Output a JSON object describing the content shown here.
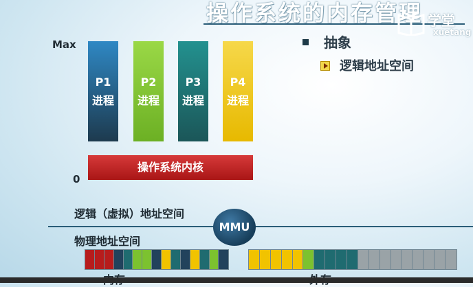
{
  "header": {
    "title": "操作系统的内存管理"
  },
  "logo": {
    "name_zh": "学堂",
    "name_en": "xuetang"
  },
  "bullets": {
    "level1": "抽象",
    "level2": "逻辑地址空间"
  },
  "axis": {
    "max": "Max",
    "zero": "0"
  },
  "processes": [
    {
      "name": "P1",
      "label": "进程",
      "color": "#22425c"
    },
    {
      "name": "P2",
      "label": "进程",
      "color": "#7cc22f"
    },
    {
      "name": "P3",
      "label": "进程",
      "color": "#1f6b70"
    },
    {
      "name": "P4",
      "label": "进程",
      "color": "#f1c300"
    }
  ],
  "kernel": {
    "label": "操作系统内核"
  },
  "address": {
    "logical": "逻辑（虚拟）地址空间",
    "physical": "物理地址空间",
    "mmu": "MMU"
  },
  "memory": {
    "label": "内存",
    "colors": [
      "#b71c1c",
      "#b71c1c",
      "#b71c1c",
      "#22425c",
      "#1f6b70",
      "#7cc22f",
      "#7cc22f",
      "#22425c",
      "#f1c300",
      "#1f6b70",
      "#22425c",
      "#f1c300",
      "#1f6b70",
      "#7cc22f",
      "#22425c"
    ]
  },
  "external": {
    "label": "外存",
    "colors": [
      "#f1c300",
      "#f1c300",
      "#f1c300",
      "#f1c300",
      "#f1c300",
      "#7cc22f",
      "#1f6b70",
      "#1f6b70",
      "#1f6b70",
      "#1f6b70",
      "#9aa3a7",
      "#9aa3a7",
      "#9aa3a7",
      "#9aa3a7",
      "#9aa3a7",
      "#9aa3a7",
      "#9aa3a7",
      "#9aa3a7",
      "#9aa3a7"
    ]
  }
}
